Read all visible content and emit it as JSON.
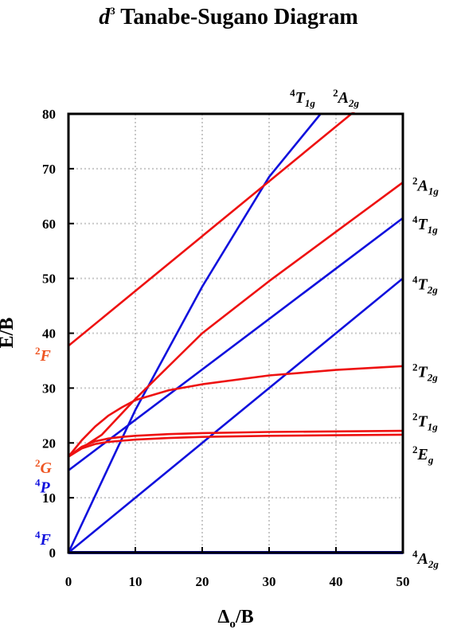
{
  "chart_data": {
    "type": "line",
    "title_italic": "d",
    "title_sup": "3",
    "title_rest": " Tanabe-Sugano Diagram",
    "ylabel": "E/B",
    "xlabel_main": "Δ",
    "xlabel_sub": "o",
    "xlabel_tail": "/B",
    "xlim": [
      0,
      50
    ],
    "ylim": [
      0,
      80
    ],
    "xticks": [
      "0",
      "10",
      "20",
      "30",
      "40",
      "50"
    ],
    "yticks": [
      "0",
      "10",
      "20",
      "30",
      "40",
      "50",
      "60",
      "70",
      "80"
    ],
    "grid": true,
    "colors": {
      "quartet": "#1010dd",
      "doublet": "#ee1111"
    },
    "left_labels": [
      {
        "sup": "2",
        "main": "F",
        "color": "#ee5522",
        "y": 36
      },
      {
        "sup": "2",
        "main": "G",
        "color": "#ee5522",
        "y": 15.5
      },
      {
        "sup": "4",
        "main": "P",
        "color": "#1010dd",
        "y": 12
      },
      {
        "sup": "4",
        "main": "F",
        "color": "#1010dd",
        "y": 2.5
      }
    ],
    "right_labels": [
      {
        "sup": "2",
        "main": "A",
        "sub": "1g",
        "y": 67
      },
      {
        "sup": "4",
        "main": "T",
        "sub": "1g",
        "y": 60
      },
      {
        "sup": "4",
        "main": "T",
        "sub": "2g",
        "y": 49
      },
      {
        "sup": "2",
        "main": "T",
        "sub": "2g",
        "y": 33
      },
      {
        "sup": "2",
        "main": "T",
        "sub": "1g",
        "y": 24
      },
      {
        "sup": "2",
        "main": "E",
        "sub": "g",
        "y": 18
      },
      {
        "sup": "4",
        "main": "A",
        "sub": "2g",
        "y": -1
      }
    ],
    "top_labels": [
      {
        "sup": "4",
        "main": "T",
        "sub": "1g",
        "x": 35
      },
      {
        "sup": "2",
        "main": "A",
        "sub": "2g",
        "x": 41.5
      }
    ],
    "series": [
      {
        "group": "quartet",
        "x": [
          0,
          50
        ],
        "y": [
          0,
          0
        ]
      },
      {
        "group": "quartet",
        "x": [
          0,
          50
        ],
        "y": [
          0,
          50
        ]
      },
      {
        "group": "quartet",
        "x": [
          0,
          50
        ],
        "y": [
          15,
          61
        ]
      },
      {
        "group": "quartet",
        "x": [
          0,
          10,
          20,
          30,
          37.7
        ],
        "y": [
          0,
          26,
          48.5,
          68.5,
          80
        ]
      },
      {
        "group": "doublet",
        "x": [
          0,
          50
        ],
        "y": [
          37.7,
          87.7
        ]
      },
      {
        "group": "doublet",
        "x": [
          0,
          5,
          10,
          20,
          30,
          40,
          50
        ],
        "y": [
          17.5,
          21.5,
          28,
          40,
          49.5,
          58.5,
          67.5
        ]
      },
      {
        "group": "doublet",
        "x": [
          0,
          2,
          4,
          6,
          8,
          10,
          15,
          20,
          30,
          40,
          50
        ],
        "y": [
          17.5,
          20.5,
          23,
          25,
          26.5,
          27.8,
          29.6,
          30.7,
          32.3,
          33.3,
          34.0
        ]
      },
      {
        "group": "doublet",
        "x": [
          0,
          2,
          4,
          6,
          8,
          10,
          15,
          20,
          30,
          40,
          50
        ],
        "y": [
          17.5,
          19.3,
          20.3,
          20.8,
          21.1,
          21.3,
          21.6,
          21.8,
          22.0,
          22.1,
          22.2
        ]
      },
      {
        "group": "doublet",
        "x": [
          0,
          2,
          4,
          6,
          8,
          10,
          15,
          20,
          30,
          40,
          50
        ],
        "y": [
          17.5,
          19.0,
          19.8,
          20.2,
          20.4,
          20.6,
          20.9,
          21.1,
          21.3,
          21.4,
          21.5
        ]
      }
    ]
  }
}
